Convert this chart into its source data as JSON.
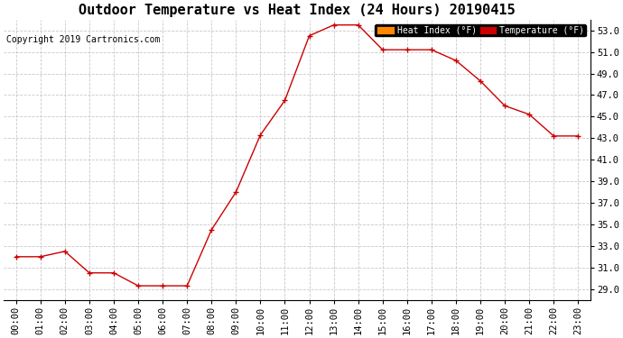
{
  "title": "Outdoor Temperature vs Heat Index (24 Hours) 20190415",
  "copyright": "Copyright 2019 Cartronics.com",
  "hours": [
    "00:00",
    "01:00",
    "02:00",
    "03:00",
    "04:00",
    "05:00",
    "06:00",
    "07:00",
    "08:00",
    "09:00",
    "10:00",
    "11:00",
    "12:00",
    "13:00",
    "14:00",
    "15:00",
    "16:00",
    "17:00",
    "18:00",
    "19:00",
    "20:00",
    "21:00",
    "22:00",
    "23:00"
  ],
  "temperature": [
    32.0,
    32.0,
    32.5,
    30.5,
    30.5,
    29.3,
    29.3,
    29.3,
    34.5,
    38.0,
    43.3,
    46.5,
    52.5,
    53.5,
    53.5,
    51.2,
    51.2,
    51.2,
    50.2,
    48.3,
    46.0,
    45.2,
    43.2,
    43.2
  ],
  "heat_index": [
    32.0,
    32.0,
    32.5,
    30.5,
    30.5,
    29.3,
    29.3,
    29.3,
    34.5,
    38.0,
    43.3,
    46.5,
    52.5,
    53.5,
    53.5,
    51.2,
    51.2,
    51.2,
    50.2,
    48.3,
    46.0,
    45.2,
    43.2,
    43.2
  ],
  "temp_color": "#cc0000",
  "heat_index_color": "#ff6600",
  "ylim_min": 28.0,
  "ylim_max": 54.0,
  "background_color": "#ffffff",
  "grid_color": "#bbbbbb",
  "legend_heat_index_bg": "#ff8800",
  "legend_temp_bg": "#cc0000",
  "legend_text_color": "#ffffff",
  "title_fontsize": 11,
  "copyright_fontsize": 7,
  "tick_fontsize": 7.5
}
